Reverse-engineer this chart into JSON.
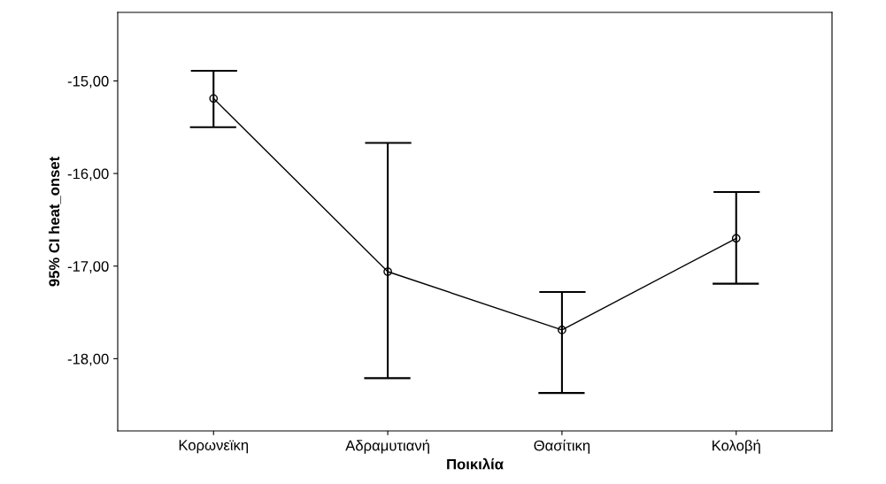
{
  "chart_data": {
    "type": "line",
    "xlabel": "Ποικιλία",
    "ylabel": "95% CI heat_onset",
    "categories": [
      "Κορωνεϊκη",
      "Αδραμυτιανή",
      "Θασίτικη",
      "Κολοβή"
    ],
    "series": [
      {
        "color": "#000000",
        "values": [
          -15.19,
          -17.06,
          -17.69,
          -16.7
        ],
        "errors": [
          [
            -15.5,
            -14.89
          ],
          [
            -18.21,
            -15.67
          ],
          [
            -18.37,
            -17.28
          ],
          [
            -17.19,
            -16.2
          ]
        ]
      }
    ],
    "ylim": [
      -18.78,
      -14.26
    ],
    "yticks": [
      {
        "value": -18,
        "label": "-18,00"
      },
      {
        "value": -17,
        "label": "-17,00"
      },
      {
        "value": -16,
        "label": "-16,00"
      },
      {
        "value": -15,
        "label": "-15,00"
      }
    ],
    "marker": "circle",
    "line_style": "solid",
    "grid": false,
    "legend": false
  }
}
